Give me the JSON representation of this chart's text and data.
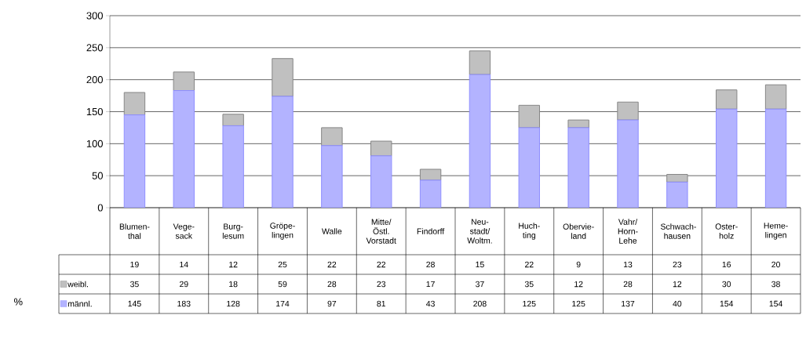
{
  "chart_data": {
    "type": "bar",
    "stacked": true,
    "categories": [
      "Blumen-thal",
      "Vege-sack",
      "Burg-lesum",
      "Gröpe-lingen",
      "Walle",
      "Mitte/ Östl. Vorstadt",
      "Findorff",
      "Neu-stadt/ Woltm.",
      "Huch-ting",
      "Obervie-land",
      "Vahr/ Horn-Lehe",
      "Schwach-hausen",
      "Oster-holz",
      "Heme-lingen"
    ],
    "series": [
      {
        "name": "männl.",
        "color": "#b3b3ff",
        "values": [
          145,
          183,
          128,
          174,
          97,
          81,
          43,
          208,
          125,
          125,
          137,
          40,
          154,
          154
        ]
      },
      {
        "name": "weibl.",
        "color": "#c0c0c0",
        "values": [
          35,
          29,
          18,
          59,
          28,
          23,
          17,
          37,
          35,
          12,
          28,
          12,
          30,
          38
        ]
      }
    ],
    "ylim": [
      0,
      300
    ],
    "yticks": [
      0,
      50,
      100,
      150,
      200,
      250,
      300
    ],
    "grid": "y",
    "legend": "bottom left",
    "data_labels": true,
    "annotations": [
      "%",
      "19",
      "14",
      "12",
      "25",
      "22",
      "22",
      "28",
      "15",
      "22",
      "9",
      "13",
      "23",
      "16",
      "20"
    ]
  }
}
